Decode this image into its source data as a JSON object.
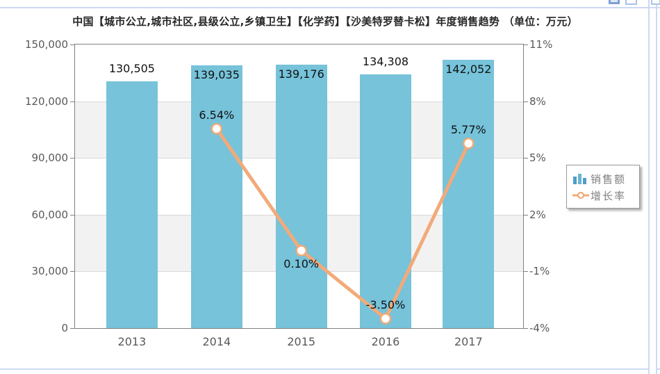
{
  "header": {
    "title": "中国【城市公立,城市社区,县级公立,乡镇卫生】【化学药】【沙美特罗替卡松】年度销售趋势 （单位：万元）"
  },
  "toolbar": {
    "icons": [
      "restore-window-icon",
      "popout-window-icon",
      "maximize-window-icon"
    ]
  },
  "legend": {
    "position": "right",
    "items": [
      {
        "label": "销售额",
        "icon": "bar-series-icon"
      },
      {
        "label": "增长率",
        "icon": "line-series-icon"
      }
    ]
  },
  "colors": {
    "bar": "#76c3da",
    "line": "#f2aa79",
    "marker_fill": "#ffffff",
    "band_gray": "#f2f2f2",
    "gridline": "#d9d9d9",
    "plot_border": "#808080",
    "axis_text": "#595959",
    "value_text": "#111111",
    "legend_text": "#808080",
    "frame_blue": "#ccd9f1",
    "legend_icon_blue": "#4f9fc7"
  },
  "chart_data": {
    "type": "combo-bar-line",
    "title": "中国【城市公立,城市社区,县级公立,乡镇卫生】【化学药】【沙美特罗替卡松】年度销售趋势 （单位：万元）",
    "unit": "万元",
    "categories": [
      "2013",
      "2014",
      "2015",
      "2016",
      "2017"
    ],
    "series": [
      {
        "name": "销售额",
        "type": "bar",
        "axis": "left",
        "values": [
          130505,
          139035,
          139176,
          134308,
          142052
        ],
        "data_labels": [
          "130,505",
          "139,035",
          "139,176",
          "134,308",
          "142,052"
        ]
      },
      {
        "name": "增长率",
        "type": "line",
        "axis": "right",
        "values": [
          null,
          6.54,
          0.1,
          -3.5,
          5.77
        ],
        "data_labels": [
          null,
          "6.54%",
          "0.10%",
          "-3.50%",
          "5.77%"
        ]
      }
    ],
    "left_axis": {
      "min": 0,
      "max": 150000,
      "tick_labels": [
        "150,000",
        "120,000",
        "90,000",
        "60,000",
        "30,000",
        "0"
      ]
    },
    "right_axis": {
      "min": -4,
      "max": 11,
      "tick_labels": [
        "11%",
        "8%",
        "5%",
        "2%",
        "-1%",
        "-4%"
      ]
    },
    "grid": "horizontal, alternating gray bands",
    "legend_position": "right-middle"
  }
}
